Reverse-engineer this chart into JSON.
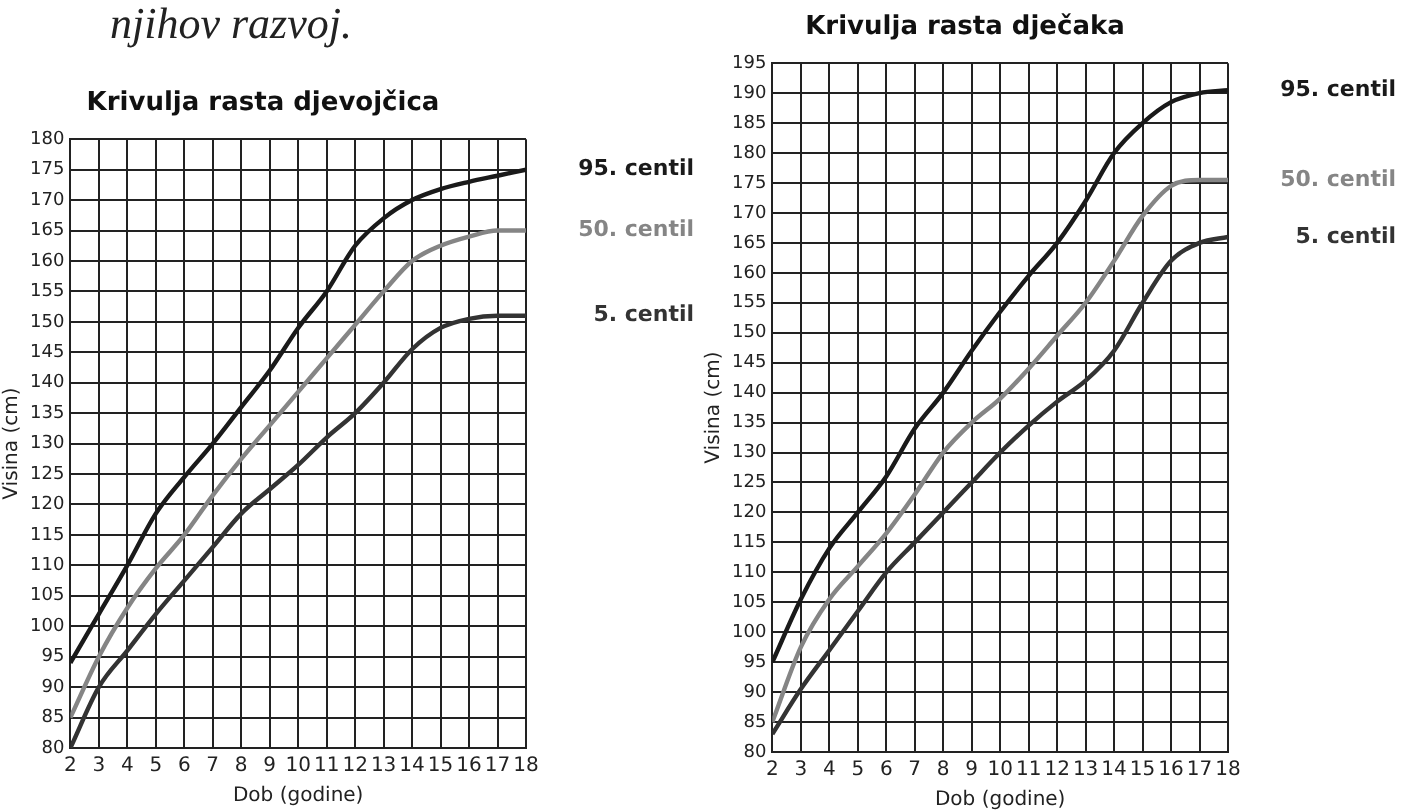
{
  "chart_data": [
    {
      "type": "line",
      "title": "Krivulja rasta djevojčica",
      "xlabel": "Dob (godine)",
      "ylabel": "Visina (cm)",
      "annotations": [
        "njihov razvoj."
      ],
      "x": [
        2,
        3,
        4,
        5,
        6,
        7,
        8,
        9,
        10,
        11,
        12,
        13,
        14,
        15,
        16,
        17,
        18
      ],
      "xlim": [
        2,
        18
      ],
      "xticks": [
        2,
        3,
        4,
        5,
        6,
        7,
        8,
        9,
        10,
        11,
        12,
        13,
        14,
        15,
        16,
        17,
        18
      ],
      "ylim": [
        80,
        180
      ],
      "yticks": [
        80,
        85,
        90,
        95,
        100,
        105,
        110,
        115,
        120,
        125,
        130,
        135,
        140,
        145,
        150,
        155,
        160,
        165,
        170,
        175,
        180
      ],
      "grid": true,
      "legend": false,
      "marker": "none",
      "line_style": "solid",
      "series": [
        {
          "name": "95. centil",
          "color": "#1a1a1a",
          "values": [
            94,
            102,
            110,
            118.5,
            124.5,
            130,
            136,
            142,
            149,
            155,
            162.5,
            167,
            170,
            171.8,
            173,
            174,
            175
          ]
        },
        {
          "name": "50. centil",
          "color": "#858585",
          "values": [
            85,
            95,
            103,
            109.5,
            115,
            121.5,
            127.5,
            133,
            138.5,
            144,
            149.5,
            155,
            160,
            162.5,
            164,
            165,
            165
          ]
        },
        {
          "name": "5. centil",
          "color": "#333333",
          "values": [
            80,
            90,
            96,
            102,
            107.5,
            113,
            118.5,
            122.5,
            126.5,
            131,
            135,
            140,
            145.5,
            149,
            150.5,
            151,
            151
          ]
        }
      ]
    },
    {
      "type": "line",
      "title": "Krivulja rasta dječaka",
      "xlabel": "Dob (godine)",
      "ylabel": "Visina (cm)",
      "x": [
        2,
        3,
        4,
        5,
        6,
        7,
        8,
        9,
        10,
        11,
        12,
        13,
        14,
        15,
        16,
        17,
        18
      ],
      "xlim": [
        2,
        18
      ],
      "xticks": [
        2,
        3,
        4,
        5,
        6,
        7,
        8,
        9,
        10,
        11,
        12,
        13,
        14,
        15,
        16,
        17,
        18
      ],
      "ylim": [
        80,
        195
      ],
      "yticks": [
        80,
        85,
        90,
        95,
        100,
        105,
        110,
        115,
        120,
        125,
        130,
        135,
        140,
        145,
        150,
        155,
        160,
        165,
        170,
        175,
        180,
        185,
        190,
        195
      ],
      "grid": true,
      "legend": false,
      "marker": "none",
      "line_style": "solid",
      "series": [
        {
          "name": "95. centil",
          "color": "#1a1a1a",
          "values": [
            95,
            105.5,
            114,
            120,
            126,
            134,
            140,
            147,
            153.5,
            159.5,
            165,
            172,
            180,
            185,
            188.5,
            190,
            190.5
          ]
        },
        {
          "name": "50. centil",
          "color": "#858585",
          "values": [
            85,
            97.5,
            105.5,
            111,
            116.5,
            123,
            130,
            135,
            139,
            144,
            149.5,
            155,
            162,
            169.5,
            174.5,
            175.5,
            175.5
          ]
        },
        {
          "name": "5. centil",
          "color": "#333333",
          "values": [
            83,
            90.5,
            97,
            103.5,
            110,
            115,
            120,
            125,
            130,
            134.5,
            138.5,
            142,
            147,
            155,
            162,
            165,
            166
          ]
        }
      ]
    }
  ]
}
